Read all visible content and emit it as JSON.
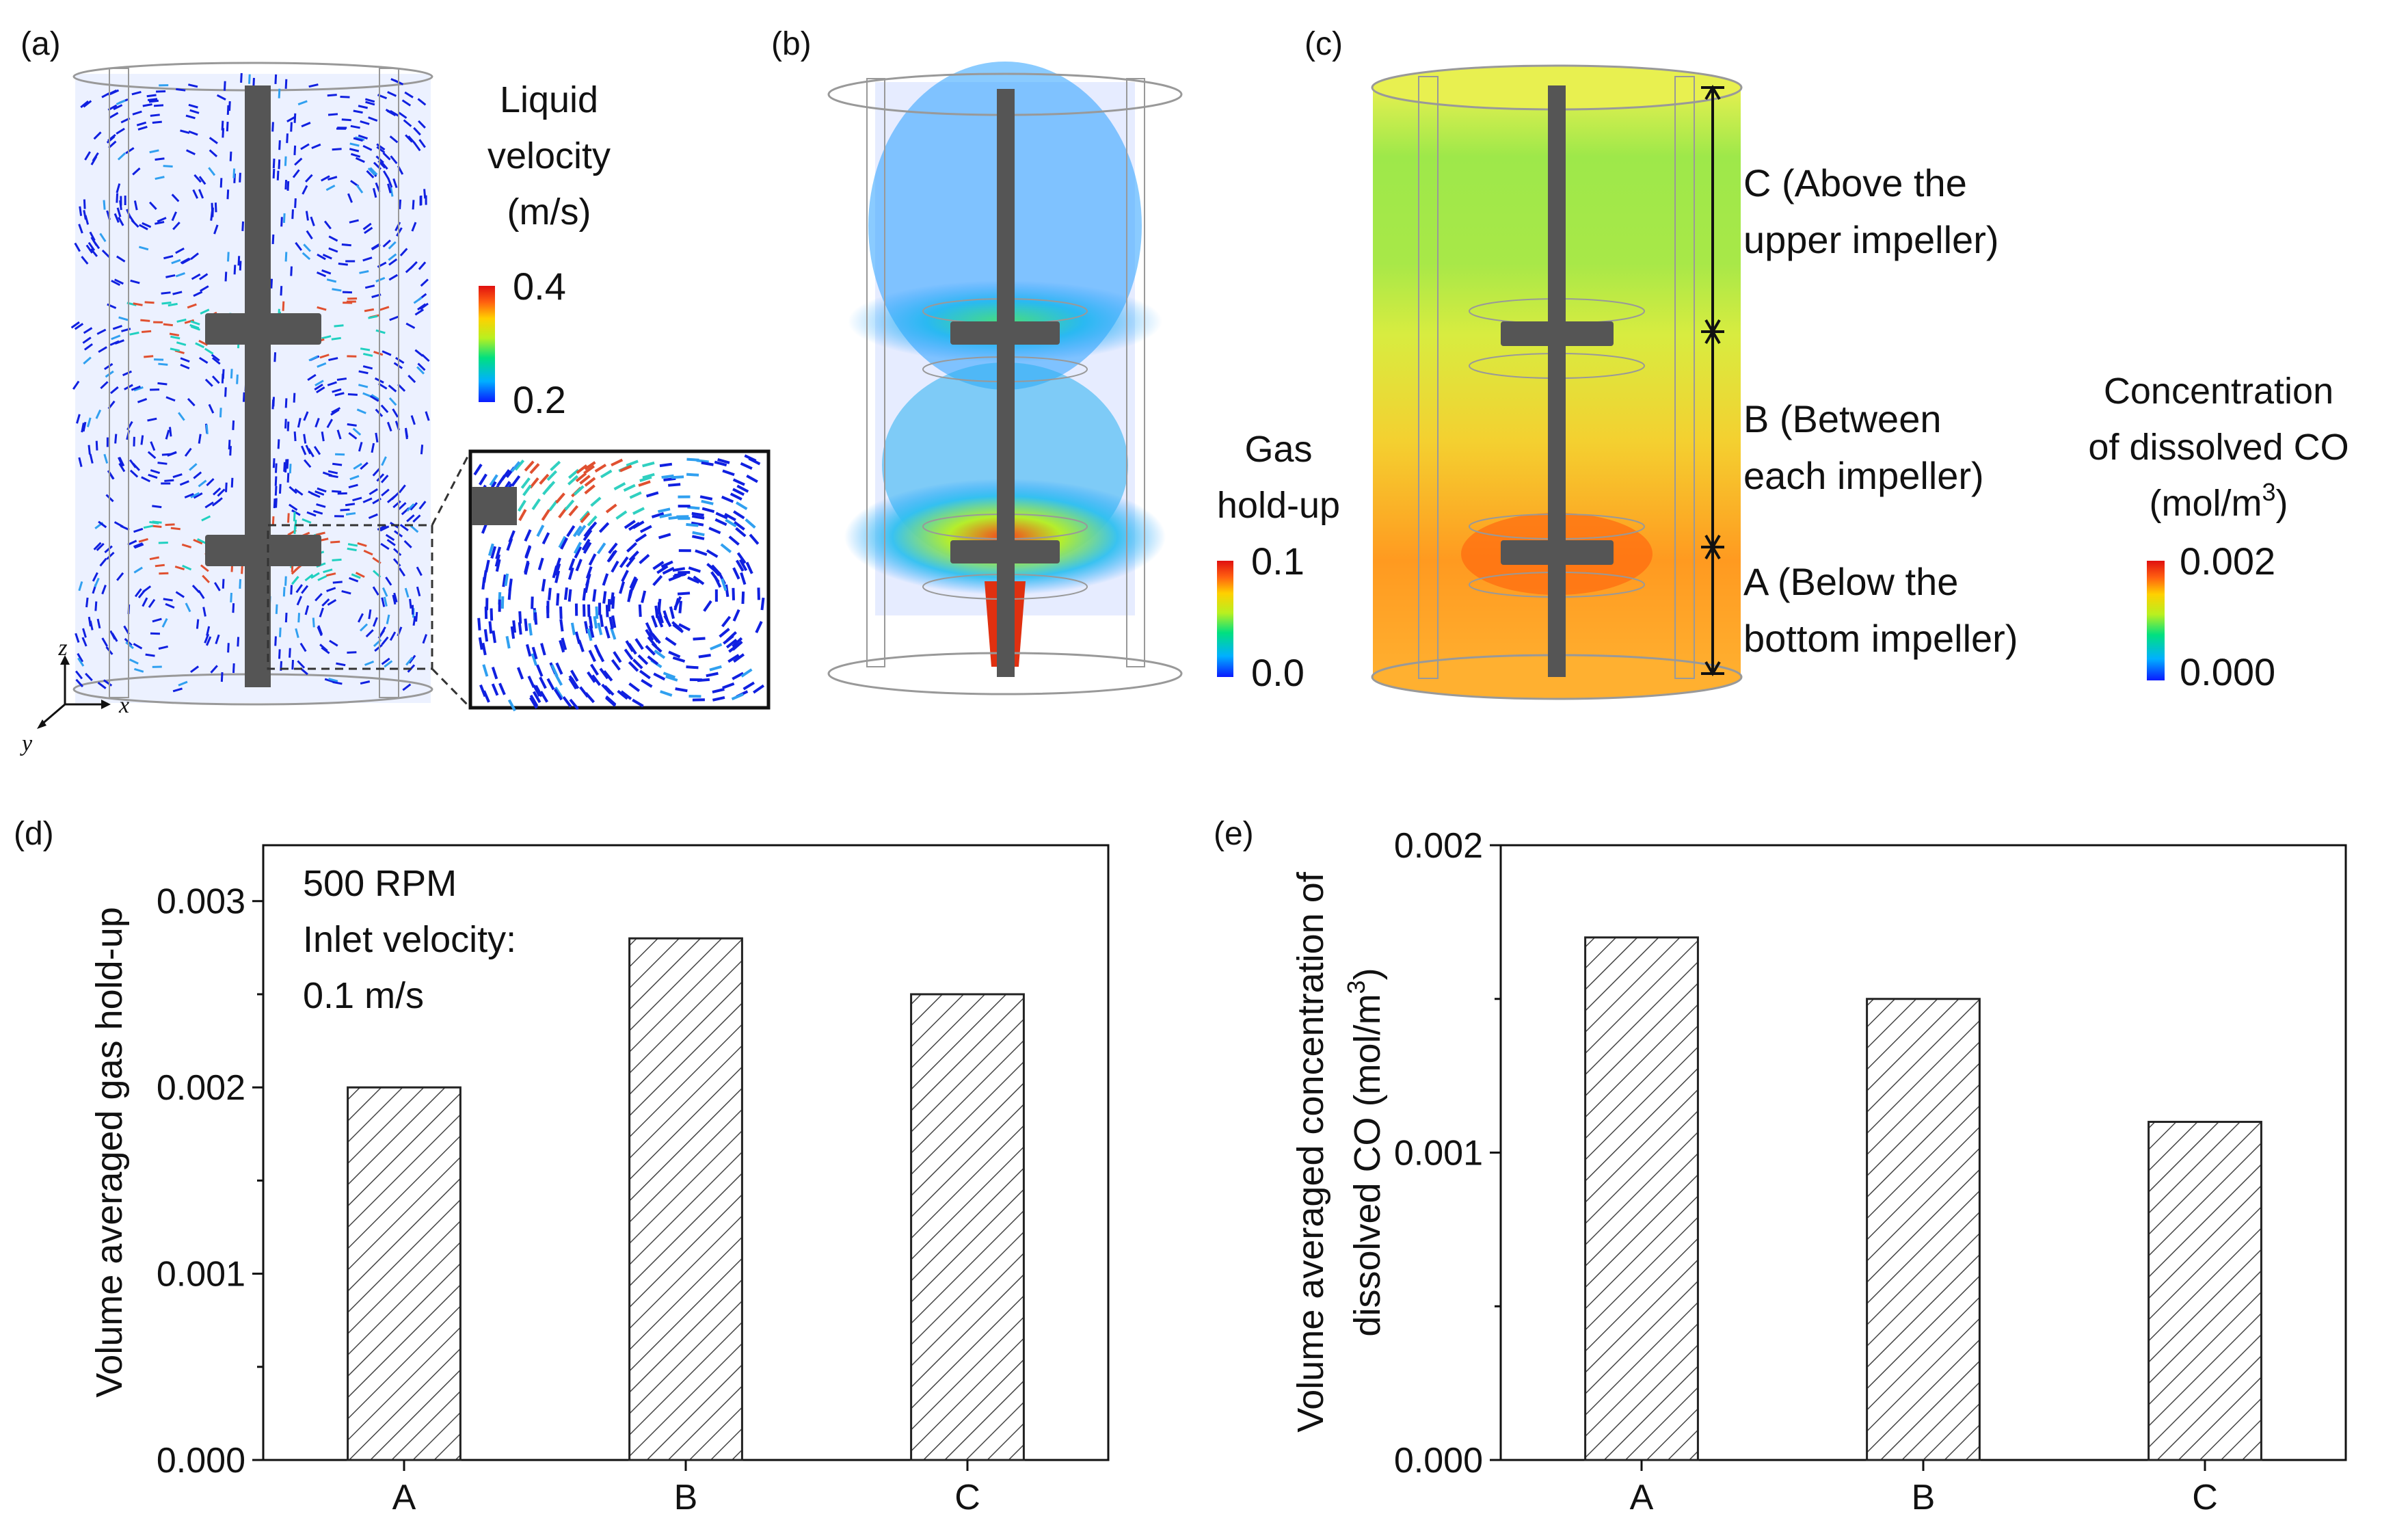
{
  "panels": {
    "a": {
      "label": "(a)",
      "cbar_title": [
        "Liquid",
        "velocity",
        "(m/s)"
      ],
      "cbar_max": "0.4",
      "cbar_min": "0.2",
      "axes": {
        "z": "z",
        "x": "x",
        "y": "y"
      }
    },
    "b": {
      "label": "(b)",
      "cbar_title": [
        "Gas",
        "hold-up"
      ],
      "cbar_max": "0.1",
      "cbar_min": "0.0"
    },
    "c": {
      "label": "(c)",
      "cbar_title": [
        "Concentration",
        "of dissolved CO"
      ],
      "cbar_unit_prefix": "(mol/m",
      "cbar_unit_sup": "3",
      "cbar_unit_suffix": ")",
      "cbar_max": "0.002",
      "cbar_min": "0.000",
      "regions": {
        "C": [
          "C (Above the",
          "upper impeller)"
        ],
        "B": [
          "B (Between",
          "each impeller)"
        ],
        "A": [
          "A (Below the",
          "bottom impeller)"
        ]
      }
    },
    "d": {
      "label": "(d)"
    },
    "e": {
      "label": "(e)"
    }
  },
  "colors": {
    "rainbow": [
      "#0a1aff",
      "#00b0ff",
      "#00e080",
      "#b8f020",
      "#ffd000",
      "#ff6010",
      "#e01010"
    ],
    "shaft": "#4a4a4a",
    "frame": "#8a8a8a"
  },
  "chart_data": [
    {
      "id": "d",
      "type": "bar",
      "categories": [
        "A",
        "B",
        "C"
      ],
      "values": [
        0.002,
        0.0028,
        0.0025
      ],
      "ylim": [
        0,
        0.0033
      ],
      "yticks": [
        0.0,
        0.001,
        0.002,
        0.003
      ],
      "ytick_labels": [
        "0.000",
        "0.001",
        "0.002",
        "0.003"
      ],
      "ylabel": "Volume averaged gas hold-up",
      "xlabel": "",
      "annotation": [
        "500 RPM",
        "Inlet velocity:",
        "0.1 m/s"
      ],
      "hatch": "diagonal"
    },
    {
      "id": "e",
      "type": "bar",
      "categories": [
        "A",
        "B",
        "C"
      ],
      "values": [
        0.0017,
        0.0015,
        0.0011
      ],
      "ylim": [
        0,
        0.002
      ],
      "yticks": [
        0.0,
        0.001,
        0.002
      ],
      "ytick_labels": [
        "0.000",
        "0.001",
        "0.002"
      ],
      "ylabel_lines": [
        "Volume averaged concentration of",
        "dissolved CO (mol/m"
      ],
      "ylabel_sup": "3",
      "ylabel_suffix": ")",
      "xlabel": "",
      "hatch": "diagonal"
    }
  ]
}
